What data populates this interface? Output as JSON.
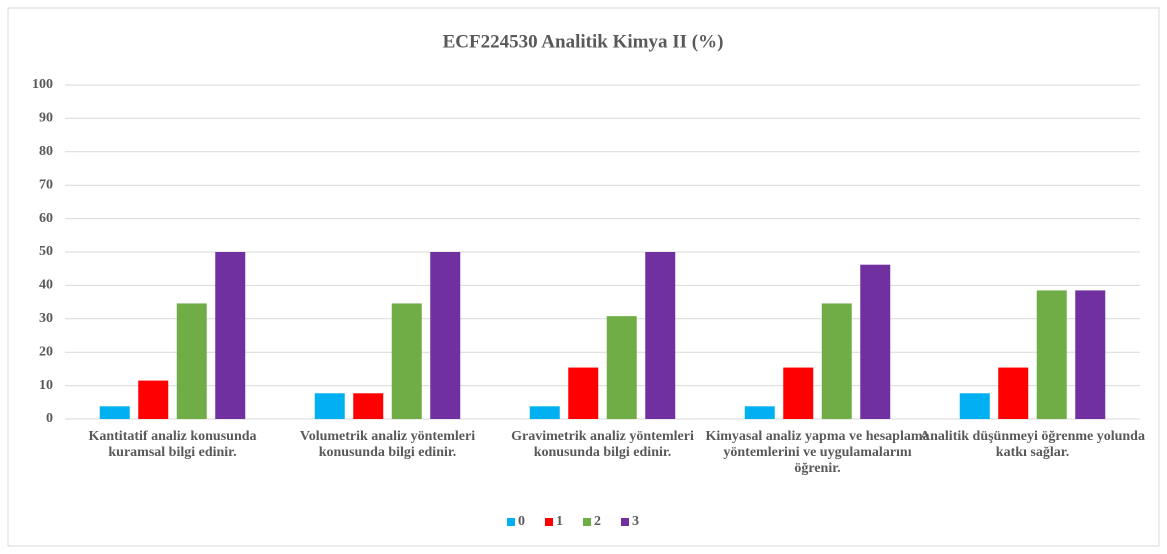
{
  "chart_data": {
    "type": "bar",
    "title": "ECF224530 Analitik Kimya II (%)",
    "categories": [
      "Kantitatif analiz konusunda kuramsal bilgi edinir.",
      "Volumetrik analiz yöntemleri konusunda bilgi edinir.",
      "Gravimetrik analiz yöntemleri konusunda bilgi edinir.",
      "Kimyasal analiz yapma ve hesaplama yöntemlerini ve uygulamalarını öğrenir.",
      "Analitik düşünmeyi öğrenme yolunda katkı sağlar."
    ],
    "series": [
      {
        "name": "0",
        "color": "#00b0f0",
        "values": [
          3.8,
          7.7,
          3.8,
          3.8,
          7.7
        ]
      },
      {
        "name": "1",
        "color": "#ff0000",
        "values": [
          11.5,
          7.7,
          15.4,
          15.4,
          15.4
        ]
      },
      {
        "name": "2",
        "color": "#70ad47",
        "values": [
          34.6,
          34.6,
          30.8,
          34.6,
          38.5
        ]
      },
      {
        "name": "3",
        "color": "#7030a0",
        "values": [
          50,
          50,
          50,
          46.2,
          38.5
        ]
      }
    ],
    "ylim": [
      0,
      100
    ],
    "yticks": [
      0,
      10,
      20,
      30,
      40,
      50,
      60,
      70,
      80,
      90,
      100
    ],
    "grid": true,
    "legend": "bottom"
  }
}
